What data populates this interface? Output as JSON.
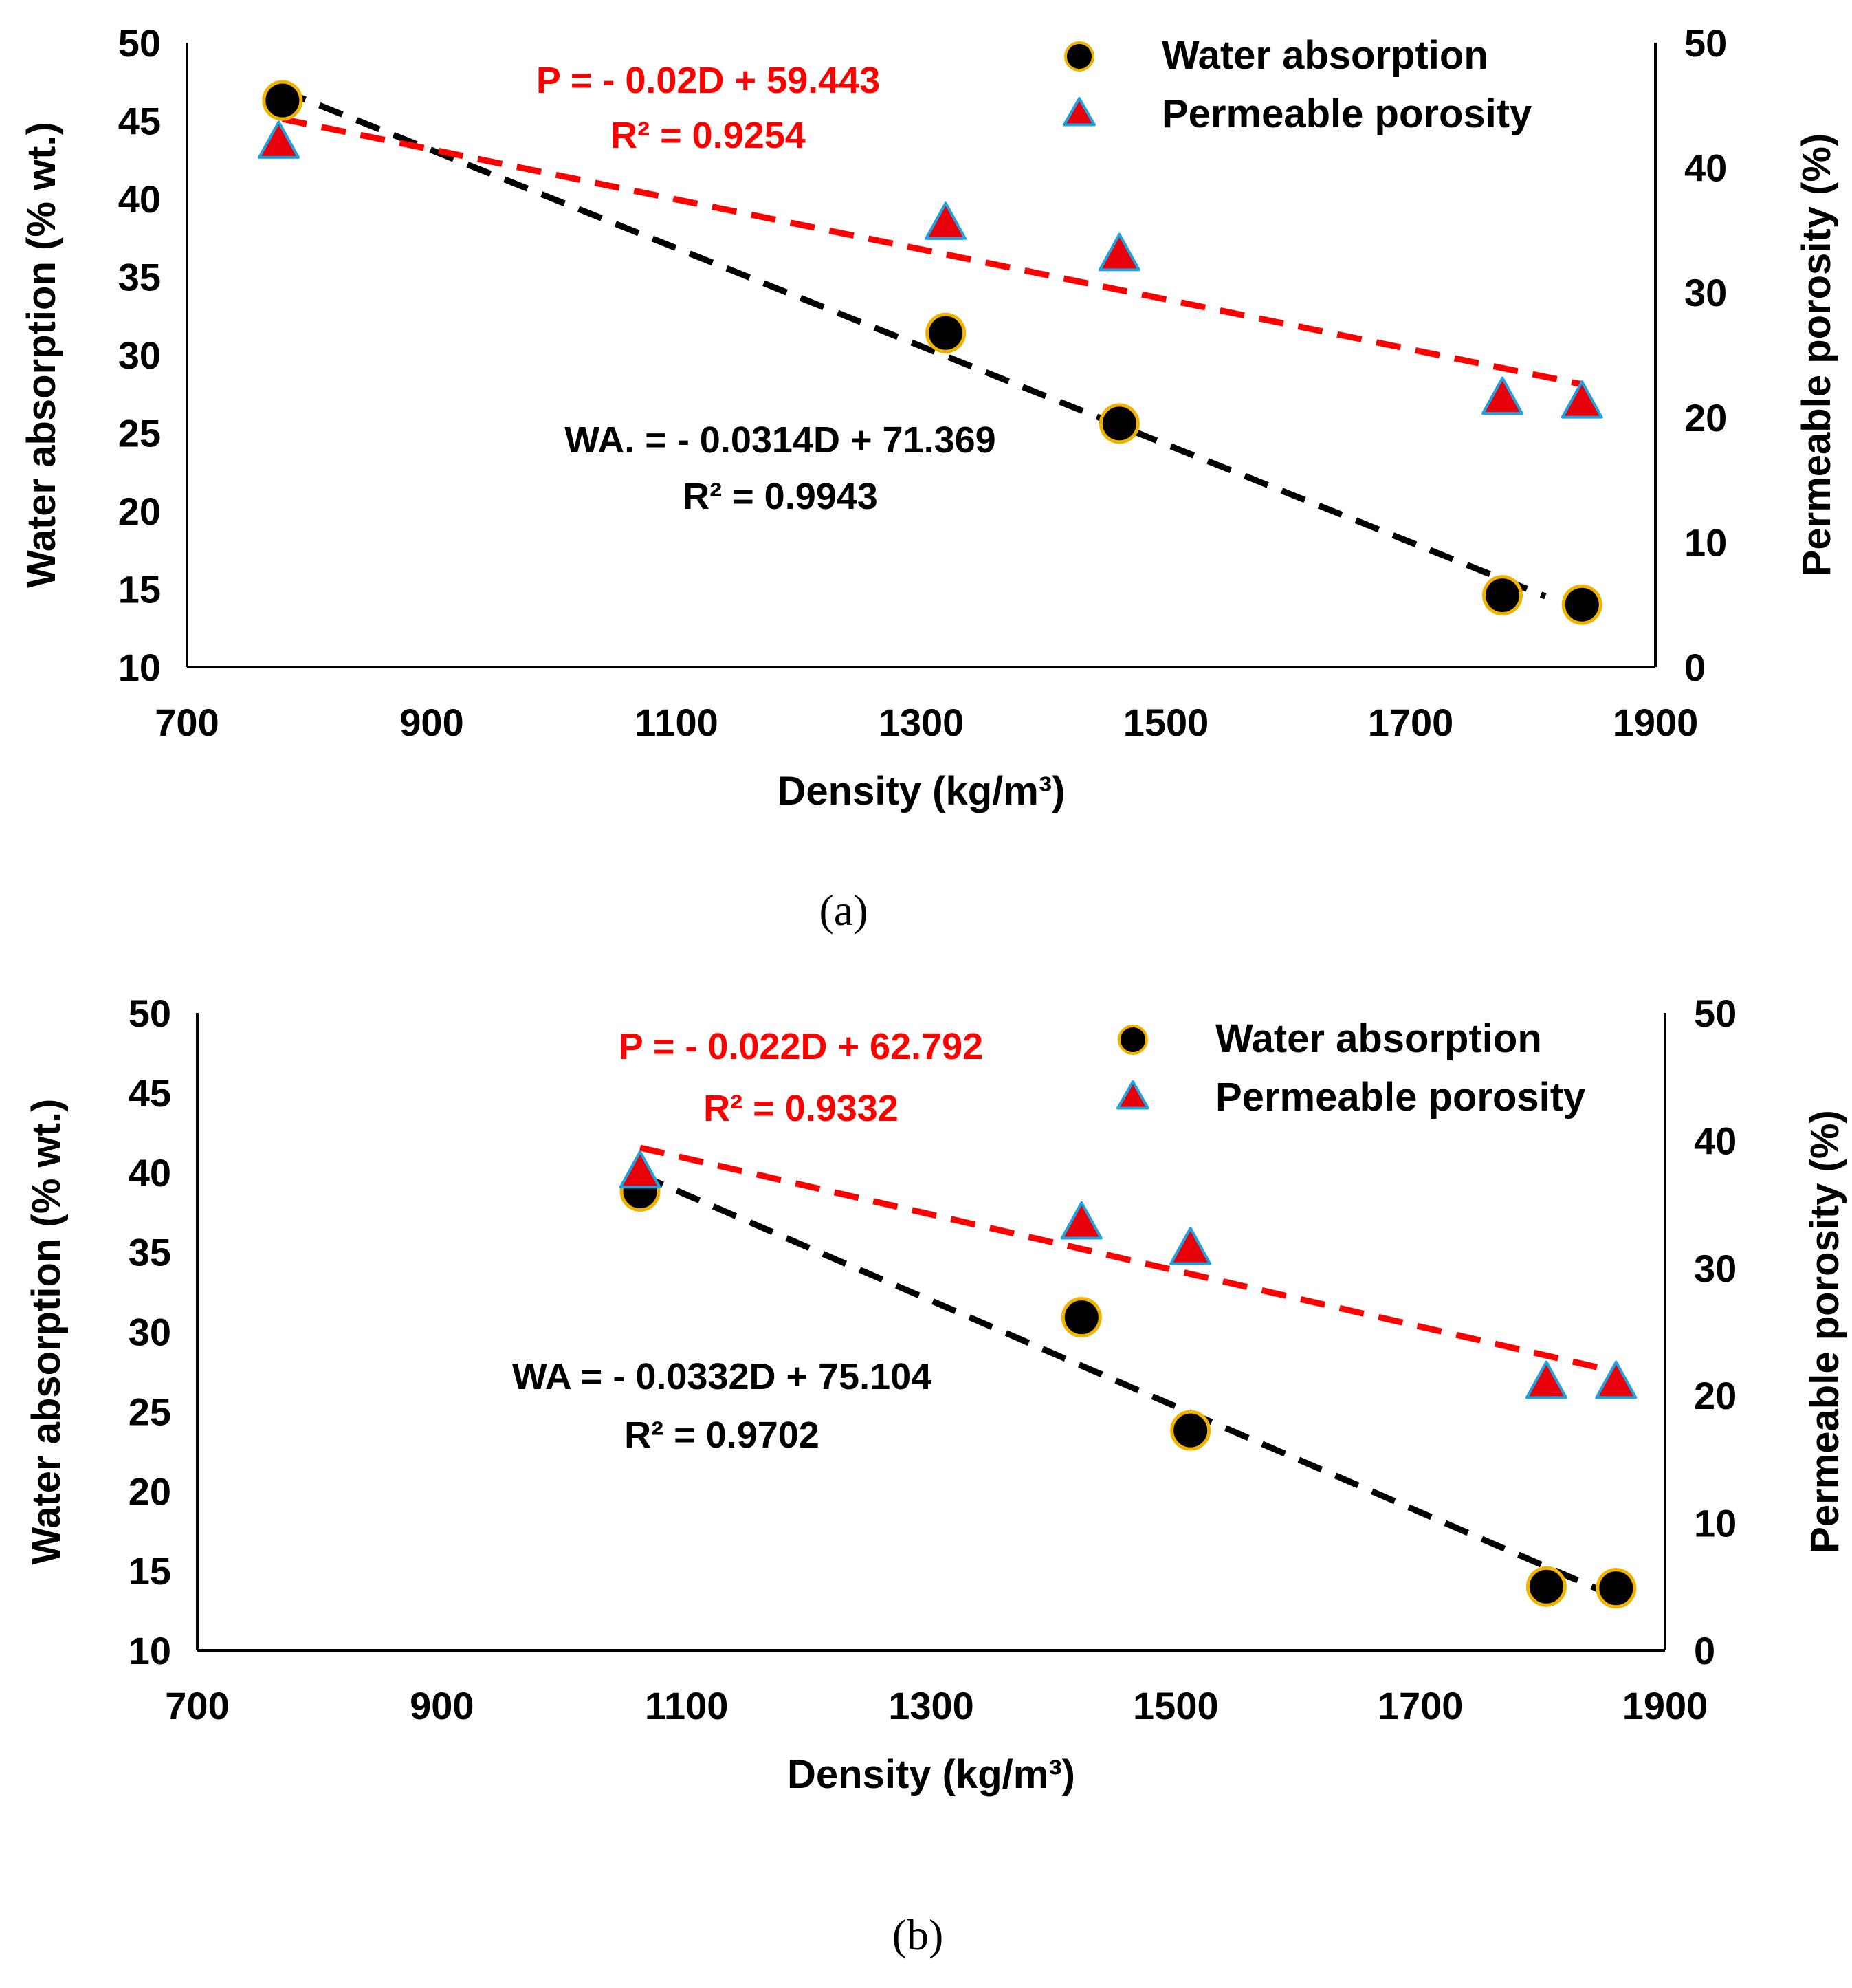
{
  "chart_data": [
    {
      "type": "scatter",
      "panel_label": "(a)",
      "xlabel": "Density (kg/m³)",
      "ylabel": "Water absorption (% wt.)",
      "y2label": "Permeable porosity (%)",
      "xlim": [
        700,
        1900
      ],
      "xticks": [
        700,
        900,
        1100,
        1300,
        1500,
        1700,
        1900
      ],
      "ylim": [
        10,
        50
      ],
      "yticks": [
        10,
        15,
        20,
        25,
        30,
        35,
        40,
        45,
        50
      ],
      "y2lim": [
        0,
        50
      ],
      "y2ticks": [
        0,
        10,
        20,
        30,
        40,
        50
      ],
      "legend": [
        "Water absorption",
        "Permeable porosity"
      ],
      "series": [
        {
          "name": "Water absorption",
          "axis": "left",
          "x": [
            778,
            1320,
            1462,
            1775,
            1840
          ],
          "y": [
            46.3,
            31.4,
            25.6,
            14.6,
            14.0
          ],
          "trendline": {
            "x0": 778,
            "x1": 1810,
            "equation": "WA. = - 0.0314D + 71.369",
            "r2": "R² = 0.9943"
          }
        },
        {
          "name": "Permeable porosity",
          "axis": "right",
          "x": [
            775,
            1320,
            1462,
            1775,
            1840
          ],
          "y": [
            42.0,
            35.5,
            33.0,
            21.5,
            21.2
          ],
          "trendline": {
            "x0": 778,
            "x1": 1840,
            "equation": "P = - 0.02D + 59.443",
            "r2": "R² = 0.9254"
          }
        }
      ]
    },
    {
      "type": "scatter",
      "panel_label": "(b)",
      "xlabel": "Density (kg/m³)",
      "ylabel": "Water absorption (% wt.)",
      "y2label": "Permeable porosity (%)",
      "xlim": [
        700,
        1900
      ],
      "xticks": [
        700,
        900,
        1100,
        1300,
        1500,
        1700,
        1900
      ],
      "ylim": [
        10,
        50
      ],
      "yticks": [
        10,
        15,
        20,
        25,
        30,
        35,
        40,
        45,
        50
      ],
      "y2lim": [
        0,
        50
      ],
      "y2ticks": [
        0,
        10,
        20,
        30,
        40,
        50
      ],
      "legend": [
        "Water absorption",
        "Permeable porosity"
      ],
      "series": [
        {
          "name": "Water absorption",
          "axis": "left",
          "x": [
            1062,
            1423,
            1512,
            1803,
            1860
          ],
          "y": [
            38.8,
            30.9,
            23.8,
            14.0,
            13.9
          ],
          "trendline": {
            "x0": 1062,
            "x1": 1860,
            "equation": "WA = - 0.0332D + 75.104",
            "r2": "R² = 0.9702"
          }
        },
        {
          "name": "Permeable porosity",
          "axis": "right",
          "x": [
            1062,
            1423,
            1512,
            1803,
            1860
          ],
          "y": [
            37.5,
            33.5,
            31.5,
            21.0,
            21.0
          ],
          "trendline": {
            "x0": 1062,
            "x1": 1860,
            "equation": "P = - 0.022D + 62.792",
            "r2": "R² = 0.9332"
          }
        }
      ]
    }
  ],
  "colors": {
    "water_marker_fill": "#000000",
    "water_marker_stroke": "#F0B400",
    "porosity_marker_fill": "#E8000B",
    "porosity_marker_stroke": "#1FA3E0",
    "water_trend": "#000000",
    "porosity_trend": "#FF0000",
    "porosity_equation_text": "#FF0000",
    "water_equation_text": "#000000"
  }
}
